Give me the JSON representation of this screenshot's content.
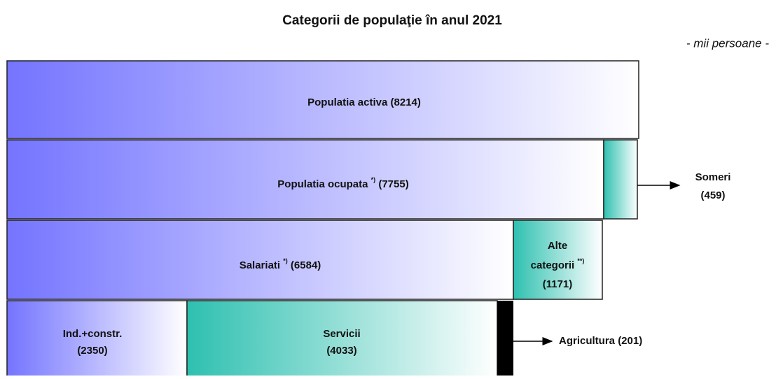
{
  "header": {
    "title": "Categorii de populaţie în anul 2021",
    "unit": "- mii persoane -"
  },
  "boxes": [
    {
      "name": "Populatia activa",
      "value": "(8214)"
    },
    {
      "name": "Populatia ocupata",
      "note": "*)",
      "value": "(7755)"
    },
    {
      "name": "Salariati",
      "note": "*)",
      "value": "(6584)"
    },
    {
      "name": "Alte",
      "name2": "categorii",
      "note": "**)",
      "value": "(1171)"
    },
    {
      "name": "Ind.+constr.",
      "value": "(2350)"
    },
    {
      "name": "Servicii",
      "value": "(4033)"
    }
  ],
  "outside": [
    {
      "name": "Someri",
      "value": "(459)"
    },
    {
      "name": "Agricultura",
      "value": "(201)"
    }
  ]
}
